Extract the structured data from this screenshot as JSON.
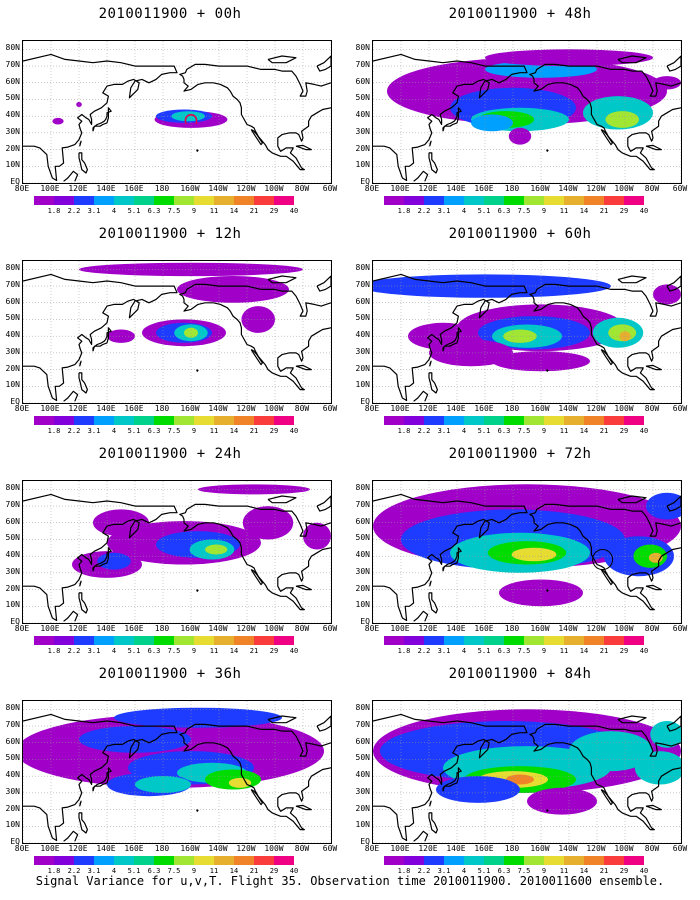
{
  "panels": [
    {
      "title": "2010011900 + 00h"
    },
    {
      "title": "2010011900 + 48h"
    },
    {
      "title": "2010011900 + 12h"
    },
    {
      "title": "2010011900 + 60h"
    },
    {
      "title": "2010011900 + 24h"
    },
    {
      "title": "2010011900 + 72h"
    },
    {
      "title": "2010011900 + 36h"
    },
    {
      "title": "2010011900 + 84h"
    }
  ],
  "lat_labels": [
    "80N",
    "70N",
    "60N",
    "50N",
    "40N",
    "30N",
    "20N",
    "10N",
    "EQ"
  ],
  "lon_labels": [
    "80E",
    "100E",
    "120E",
    "140E",
    "160E",
    "180",
    "160W",
    "140W",
    "120W",
    "100W",
    "80W",
    "60W"
  ],
  "colorbar": {
    "labels": [
      "1.8",
      "2.2",
      "3.1",
      "4",
      "5.1",
      "6.3",
      "7.5",
      "9",
      "11",
      "14",
      "21",
      "29",
      "40"
    ],
    "colors": [
      "#a000c8",
      "#8200dc",
      "#1e3cff",
      "#00a0ff",
      "#00c8c8",
      "#00d28c",
      "#00dc00",
      "#a0e632",
      "#e6dc32",
      "#e6af2d",
      "#f08228",
      "#fa3c3c",
      "#f00082"
    ]
  },
  "footer": "Signal Variance for u,v,T. Flight 35. Observation time 2010011900. 2010011600 ensemble."
}
